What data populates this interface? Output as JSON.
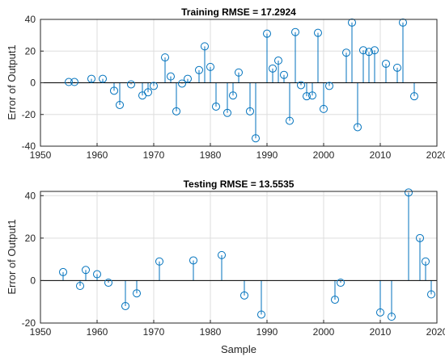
{
  "chart_data": [
    {
      "type": "stem",
      "title": "Training RMSE = 17.2924",
      "xlabel": "",
      "ylabel": "Error of Output1",
      "xlim": [
        1950,
        2020
      ],
      "ylim": [
        -40,
        40
      ],
      "xticks": [
        "1950",
        "1960",
        "1970",
        "1980",
        "1990",
        "2000",
        "2010",
        "2020"
      ],
      "yticks": [
        "-40",
        "-20",
        "0",
        "20",
        "40"
      ],
      "grid": true,
      "color": "#0072BD",
      "x": [
        1955,
        1956,
        1959,
        1961,
        1963,
        1964,
        1966,
        1968,
        1969,
        1970,
        1972,
        1973,
        1974,
        1975,
        1976,
        1978,
        1979,
        1980,
        1981,
        1983,
        1984,
        1985,
        1987,
        1988,
        1990,
        1991,
        1992,
        1993,
        1994,
        1995,
        1996,
        1997,
        1998,
        1999,
        2000,
        2001,
        2004,
        2005,
        2006,
        2007,
        2008,
        2009,
        2011,
        2013,
        2014,
        2016
      ],
      "y": [
        0.5,
        0.5,
        2.5,
        2.5,
        -5,
        -14,
        -1,
        -8,
        -6,
        -2,
        16,
        4,
        -18,
        -0.5,
        2.5,
        8,
        23,
        10,
        -15,
        -19,
        -8,
        6.5,
        -18,
        -35,
        31,
        9,
        14,
        5,
        -24,
        32,
        -1.5,
        -8.5,
        -8,
        31.5,
        -16.5,
        -2,
        19,
        38,
        -28,
        20.5,
        19.5,
        20.5,
        12,
        9.5,
        38,
        -8.5
      ]
    },
    {
      "type": "stem",
      "title": "Testing RMSE = 13.5535",
      "xlabel": "Sample",
      "ylabel": "Error of Output1",
      "xlim": [
        1950,
        2020
      ],
      "ylim": [
        -20,
        42
      ],
      "xticks": [
        "1950",
        "1960",
        "1970",
        "1980",
        "1990",
        "2000",
        "2010",
        "2020"
      ],
      "yticks": [
        "-20",
        "0",
        "20",
        "40"
      ],
      "grid": true,
      "color": "#0072BD",
      "x": [
        1954,
        1957,
        1958,
        1960,
        1962,
        1965,
        1967,
        1971,
        1977,
        1982,
        1986,
        1989,
        2002,
        2003,
        2010,
        2012,
        2015,
        2017,
        2018,
        2019
      ],
      "y": [
        4,
        -2.5,
        5,
        3,
        -1,
        -12,
        -6,
        9,
        9.5,
        12,
        -7,
        -16,
        -9,
        -1,
        -15,
        -17,
        41.5,
        20,
        9,
        -6.5
      ]
    }
  ]
}
